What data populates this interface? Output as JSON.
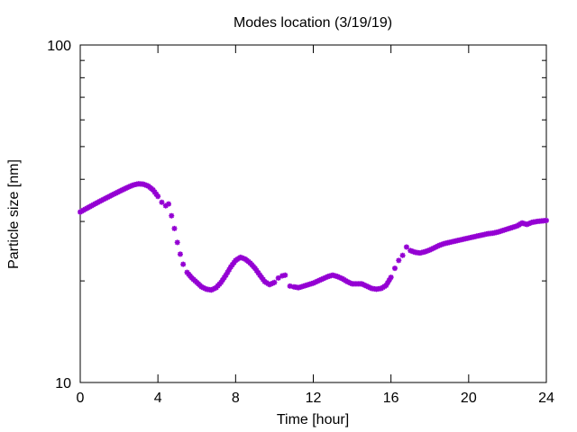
{
  "chart_data": {
    "type": "scatter",
    "title": "Modes location (3/19/19)",
    "xlabel": "Time [hour]",
    "ylabel": "Particle size [nm]",
    "xlim": [
      0,
      24
    ],
    "ylim": [
      10,
      100
    ],
    "y_scale": "log",
    "x_ticks": [
      0,
      4,
      8,
      12,
      16,
      20,
      24
    ],
    "y_ticks_labeled": [
      10,
      100
    ],
    "grid": false,
    "legend": "none",
    "marker_color": "#9400d3",
    "series": [
      {
        "x": [
          0.0,
          0.25,
          0.5,
          0.75,
          1.0,
          1.25,
          1.5,
          1.75,
          2.0,
          2.25,
          2.5,
          2.75,
          3.0,
          3.25,
          3.5,
          3.75,
          4.0,
          4.2,
          4.4,
          4.55,
          4.7,
          4.85,
          5.0,
          5.15,
          5.3,
          5.5,
          5.75,
          6.0,
          6.25,
          6.5,
          6.75,
          7.0,
          7.25,
          7.5,
          7.75,
          8.0,
          8.25,
          8.5,
          8.75,
          9.0,
          9.25,
          9.5,
          9.75,
          10.0,
          10.2,
          10.4,
          10.55,
          10.8,
          11.0,
          11.25,
          11.5,
          11.75,
          12.0,
          12.25,
          12.5,
          12.75,
          13.0,
          13.25,
          13.5,
          13.75,
          14.0,
          14.25,
          14.5,
          14.75,
          15.0,
          15.25,
          15.5,
          15.75,
          16.0,
          16.2,
          16.4,
          16.6,
          16.8,
          17.0,
          17.25,
          17.5,
          17.75,
          18.0,
          18.25,
          18.5,
          18.75,
          19.0,
          19.25,
          19.5,
          19.75,
          20.0,
          20.25,
          20.5,
          20.75,
          21.0,
          21.25,
          21.5,
          21.75,
          22.0,
          22.25,
          22.5,
          22.75,
          23.0,
          23.25,
          23.5,
          23.75,
          24.0
        ],
        "y": [
          32.0,
          32.6,
          33.2,
          33.8,
          34.4,
          35.0,
          35.6,
          36.2,
          36.8,
          37.4,
          38.0,
          38.5,
          38.8,
          38.7,
          38.2,
          37.2,
          35.6,
          34.2,
          33.4,
          33.8,
          31.2,
          28.6,
          26.0,
          24.0,
          22.4,
          21.2,
          20.4,
          19.8,
          19.2,
          18.9,
          18.8,
          19.1,
          19.8,
          20.8,
          22.0,
          23.0,
          23.5,
          23.2,
          22.6,
          21.8,
          20.8,
          19.9,
          19.5,
          19.8,
          20.4,
          20.7,
          20.8,
          19.3,
          19.2,
          19.1,
          19.3,
          19.5,
          19.7,
          20.0,
          20.3,
          20.6,
          20.8,
          20.6,
          20.3,
          19.9,
          19.6,
          19.6,
          19.6,
          19.3,
          19.0,
          18.9,
          19.0,
          19.4,
          20.5,
          21.8,
          23.0,
          23.8,
          25.2,
          24.6,
          24.3,
          24.2,
          24.4,
          24.7,
          25.1,
          25.5,
          25.8,
          26.0,
          26.2,
          26.4,
          26.6,
          26.8,
          27.0,
          27.2,
          27.4,
          27.6,
          27.7,
          27.9,
          28.2,
          28.5,
          28.8,
          29.1,
          29.7,
          29.4,
          29.8,
          30.0,
          30.1,
          30.2
        ]
      }
    ]
  }
}
